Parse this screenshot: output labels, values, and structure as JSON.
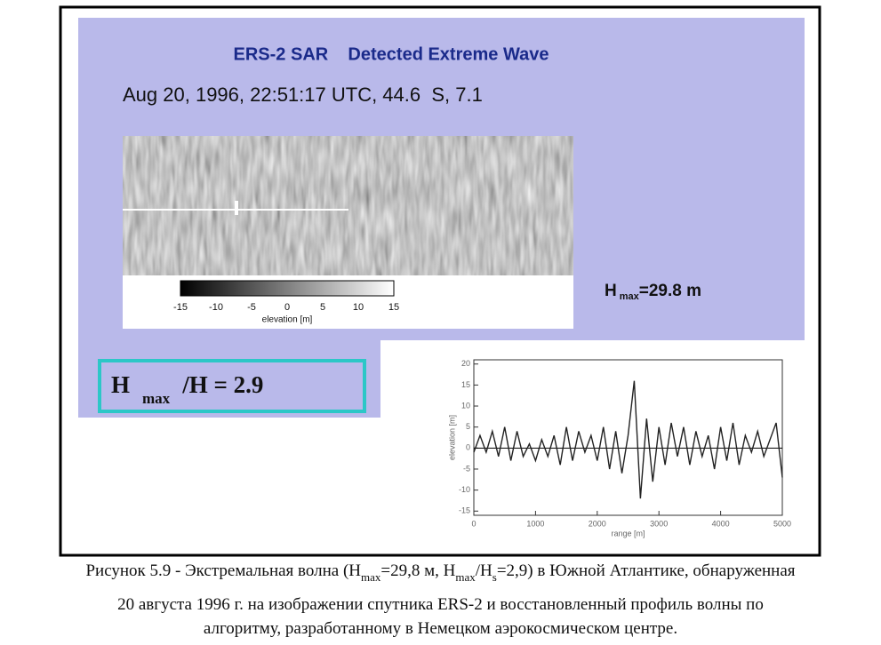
{
  "slide": {
    "title": "ERS-2 SAR    Detected Extreme Wave",
    "subtitle": "Aug 20, 1996, 22:51:17 UTC, 44.6  S, 7.1",
    "colorbar": {
      "ticks": [
        -15,
        -10,
        -5,
        0,
        5,
        10,
        15
      ],
      "label": "elevation [m]"
    },
    "hmax": [
      "H",
      "max",
      "=29.8 m"
    ],
    "ratio": [
      "H",
      "max",
      "/H = 2.9"
    ]
  },
  "chart_data": {
    "type": "line",
    "xlabel": "range [m]",
    "ylabel": "elevation [m]",
    "x": [
      0,
      100,
      200,
      300,
      400,
      500,
      600,
      700,
      800,
      900,
      1000,
      1100,
      1200,
      1300,
      1400,
      1500,
      1600,
      1700,
      1800,
      1900,
      2000,
      2100,
      2200,
      2300,
      2400,
      2500,
      2600,
      2700,
      2800,
      2900,
      3000,
      3100,
      3200,
      3300,
      3400,
      3500,
      3600,
      3700,
      3800,
      3900,
      4000,
      4100,
      4200,
      4300,
      4400,
      4500,
      4600,
      4700,
      4800,
      4900,
      5000
    ],
    "series": [
      {
        "color": "#222222",
        "values": [
          -1,
          3,
          -1,
          4,
          -2,
          5,
          -3,
          4,
          -2,
          1,
          -3,
          2,
          -2,
          3,
          -4,
          5,
          -3,
          4,
          -1,
          3,
          -3,
          5,
          -5,
          4,
          -6,
          3,
          16,
          -12,
          7,
          -8,
          5,
          -4,
          6,
          -2,
          5,
          -4,
          4,
          -2,
          3,
          -5,
          5,
          -3,
          6,
          -4,
          3,
          -1,
          4,
          -2,
          2,
          6,
          -7
        ]
      }
    ],
    "xlim": [
      0,
      5000
    ],
    "ylim": [
      -16,
      21
    ],
    "xticks": [
      0,
      1000,
      2000,
      3000,
      4000,
      5000
    ],
    "yticks": [
      -15,
      -10,
      -5,
      0,
      5,
      10,
      15,
      20
    ]
  },
  "caption": [
    [
      "Рисунок 5.9 - Экстремальная волна (H",
      "max",
      "=29,8 м, H",
      "max",
      "/H",
      "s",
      "=2,9) в Южной Атлантике, обнаруженная"
    ],
    [
      "20 августа 1996 г. на изображении спутника ERS-2  и восстановленный профиль волны по"
    ],
    [
      "алгоритму, разработанному в Немецком аэрокосмическом центре."
    ]
  ]
}
